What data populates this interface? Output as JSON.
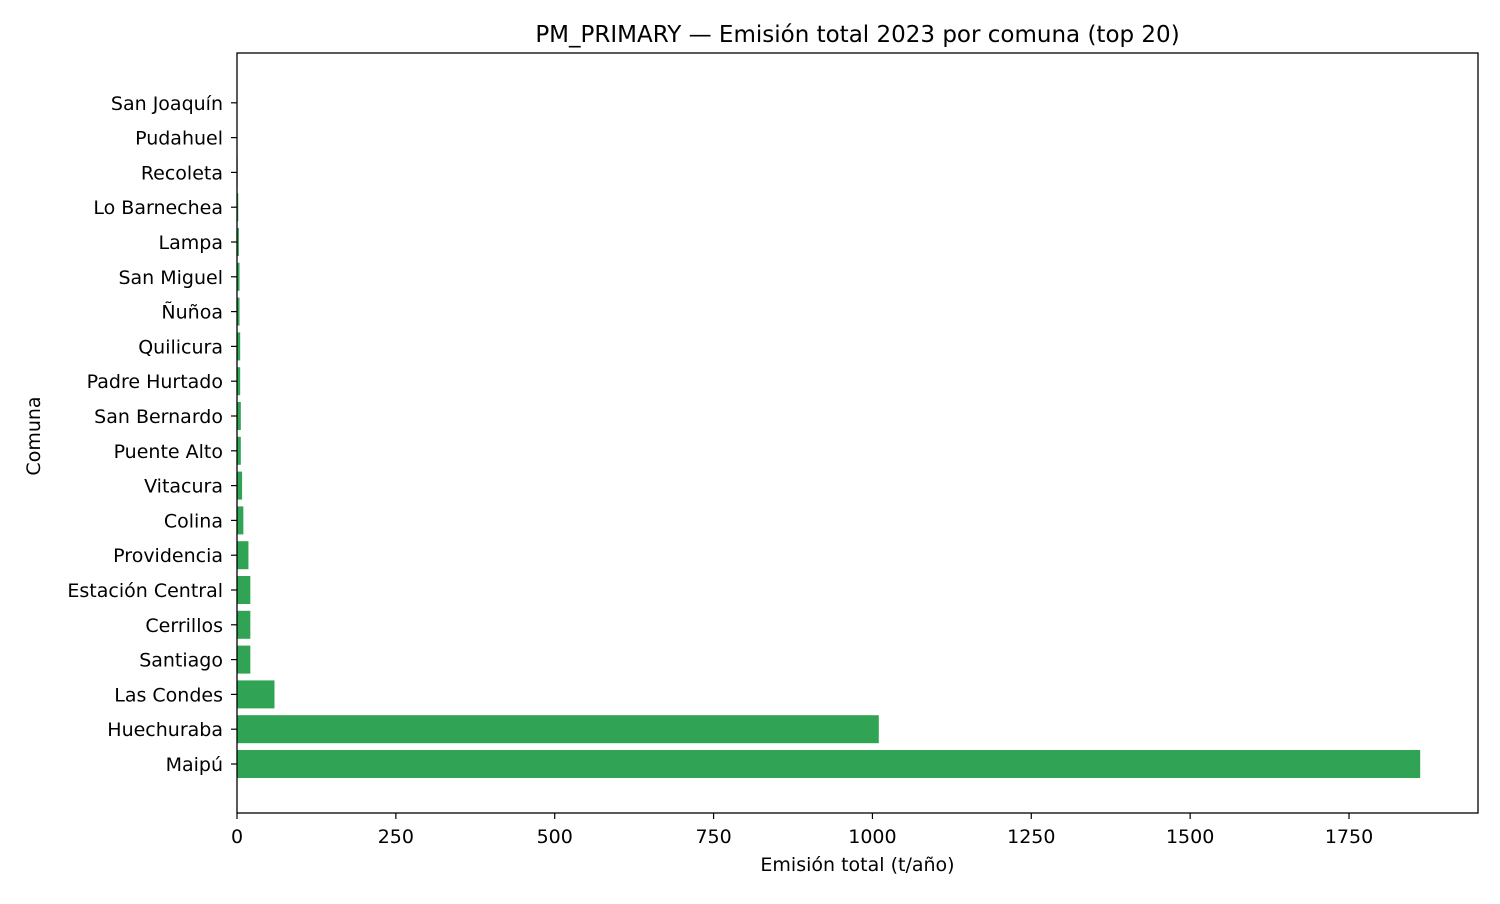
{
  "chart_data": {
    "type": "bar",
    "orientation": "horizontal",
    "title": "PM_PRIMARY — Emisión total 2023 por comuna (top 20)",
    "xlabel": "Emisión total (t/año)",
    "ylabel": "Comuna",
    "xlim": [
      0,
      1953
    ],
    "xticks": [
      0,
      250,
      500,
      750,
      1000,
      1250,
      1500,
      1750
    ],
    "grid": false,
    "legend": "none",
    "bar_color": "#31a354",
    "categories": [
      "Maipú",
      "Huechuraba",
      "Las Condes",
      "Santiago",
      "Cerrillos",
      "Estación Central",
      "Providencia",
      "Colina",
      "Vitacura",
      "Puente Alto",
      "San Bernardo",
      "Padre Hurtado",
      "Quilicura",
      "Ñuñoa",
      "San Miguel",
      "Lampa",
      "Lo Barnechea",
      "Recoleta",
      "Pudahuel",
      "San Joaquín"
    ],
    "values": [
      1862,
      1010,
      59,
      21,
      21,
      21,
      18,
      10,
      8,
      6,
      6,
      5,
      5,
      4,
      4,
      3,
      2,
      1,
      0.5,
      0.3
    ]
  }
}
